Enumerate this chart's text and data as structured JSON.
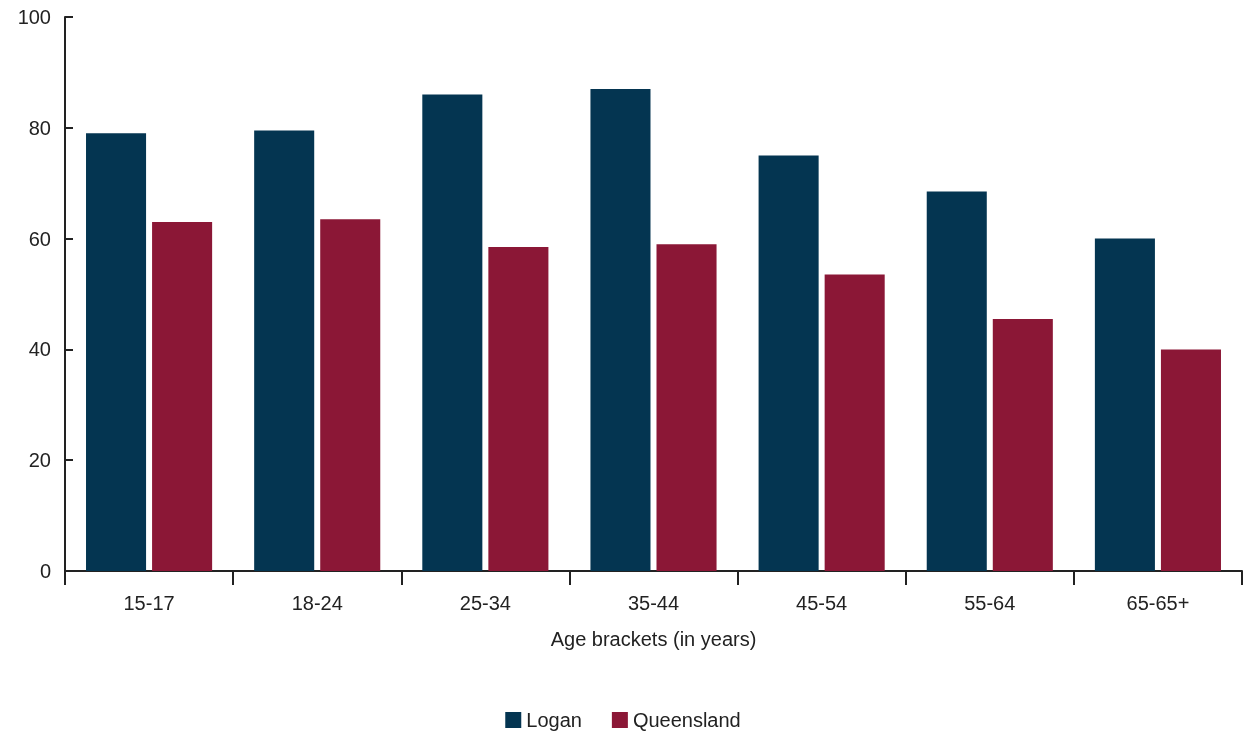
{
  "chart_data": {
    "type": "bar",
    "xlabel": "Age brackets (in years)",
    "categories": [
      "15-17",
      "18-24",
      "25-34",
      "35-44",
      "45-54",
      "55-64",
      "65-65+"
    ],
    "series": [
      {
        "name": "Logan",
        "color": "#043551",
        "values": [
          79,
          79.5,
          86,
          87,
          75,
          68.5,
          60
        ]
      },
      {
        "name": "Queensland",
        "color": "#8b1736",
        "values": [
          63,
          63.5,
          58.5,
          59,
          53.5,
          45.5,
          40
        ]
      }
    ],
    "ylim": [
      0,
      100
    ],
    "yticks": [
      0,
      20,
      40,
      60,
      80,
      100
    ],
    "grid": false,
    "legend": "bottom"
  }
}
